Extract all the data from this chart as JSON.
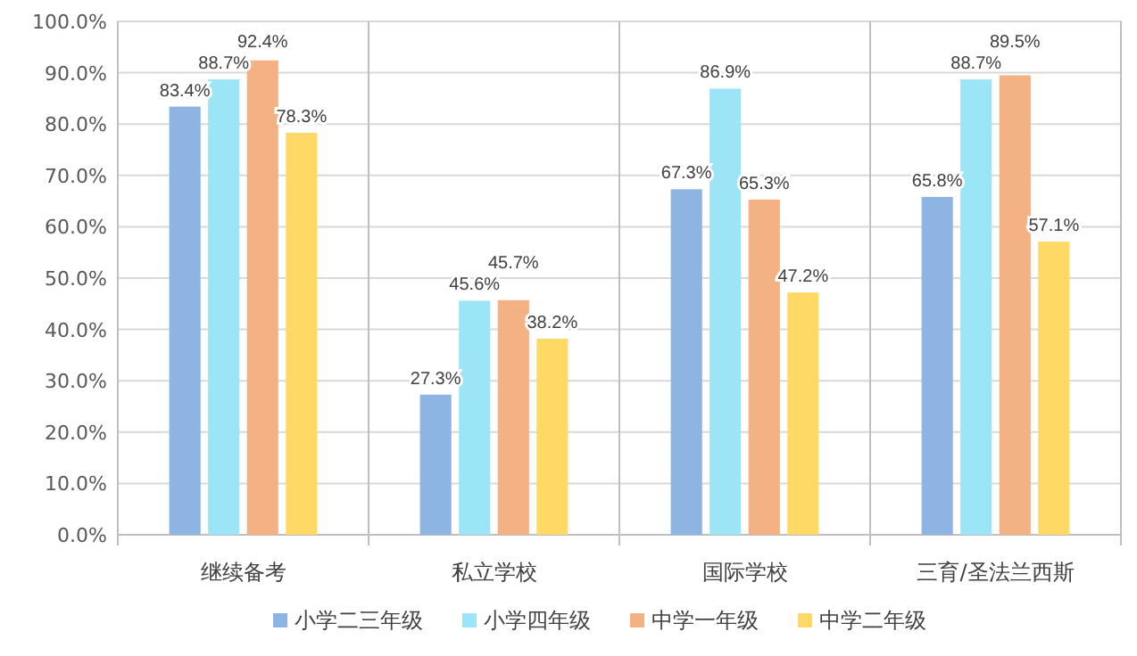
{
  "chart_data": {
    "type": "bar",
    "categories": [
      "继续备考",
      "私立学校",
      "国际学校",
      "三育/圣法兰西斯"
    ],
    "series": [
      {
        "name": "小学二三年级",
        "color": "#8db4e2",
        "values": [
          83.4,
          27.3,
          67.3,
          65.8
        ],
        "value_labels": [
          "83.4%",
          "27.3%",
          "67.3%",
          "65.8%"
        ]
      },
      {
        "name": "小学四年级",
        "color": "#9be5f7",
        "values": [
          88.7,
          45.6,
          86.9,
          88.7
        ],
        "value_labels": [
          "88.7%",
          "45.6%",
          "86.9%",
          "88.7%"
        ]
      },
      {
        "name": "中学一年级",
        "color": "#f4b183",
        "values": [
          92.4,
          45.7,
          65.3,
          89.5
        ],
        "value_labels": [
          "92.4%",
          "45.7%",
          "65.3%",
          "89.5%"
        ]
      },
      {
        "name": "中学二年级",
        "color": "#ffd966",
        "values": [
          78.3,
          38.2,
          47.2,
          57.1
        ],
        "value_labels": [
          "78.3%",
          "38.2%",
          "47.2%",
          "57.1%"
        ]
      }
    ],
    "ylim": [
      0,
      100
    ],
    "yticks": [
      {
        "value": 0,
        "label": "0.0%"
      },
      {
        "value": 10,
        "label": "10.0%"
      },
      {
        "value": 20,
        "label": "20.0%"
      },
      {
        "value": 30,
        "label": "30.0%"
      },
      {
        "value": 40,
        "label": "40.0%"
      },
      {
        "value": 50,
        "label": "50.0%"
      },
      {
        "value": 60,
        "label": "60.0%"
      },
      {
        "value": 70,
        "label": "70.0%"
      },
      {
        "value": 80,
        "label": "80.0%"
      },
      {
        "value": 90,
        "label": "90.0%"
      },
      {
        "value": 100,
        "label": "100.0%"
      }
    ],
    "grid": true,
    "legend": "bottom"
  }
}
